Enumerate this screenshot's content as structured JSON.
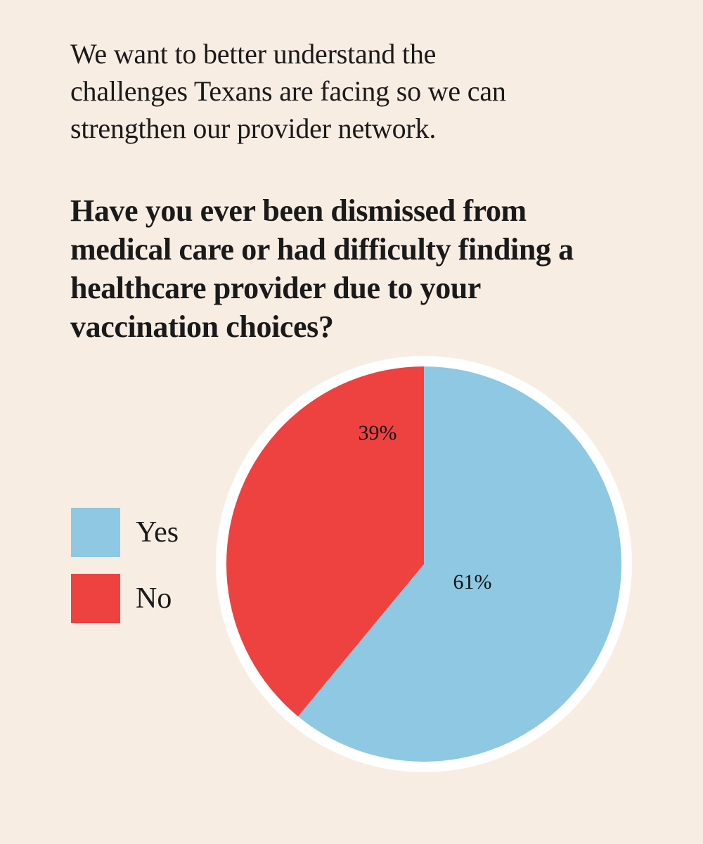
{
  "page": {
    "background_color": "#f8ede3",
    "text_color": "#1a1a1a"
  },
  "intro": {
    "lines": [
      "We want to better understand the",
      "challenges Texans are facing so we can",
      "strengthen our provider network."
    ]
  },
  "question": {
    "lines": [
      "Have you ever been dismissed from",
      "medical care or had difficulty finding a",
      "healthcare provider due to your",
      "vaccination choices?"
    ]
  },
  "chart_data": {
    "type": "pie",
    "title": "",
    "start_angle_deg": 0,
    "direction": "clockwise",
    "legend_position": "left",
    "ring_color": "#ffffff",
    "slices": [
      {
        "label": "Yes",
        "value": 61,
        "pct_label": "61%",
        "color": "#8ec8e2"
      },
      {
        "label": "No",
        "value": 39,
        "pct_label": "39%",
        "color": "#ee4241"
      }
    ]
  }
}
